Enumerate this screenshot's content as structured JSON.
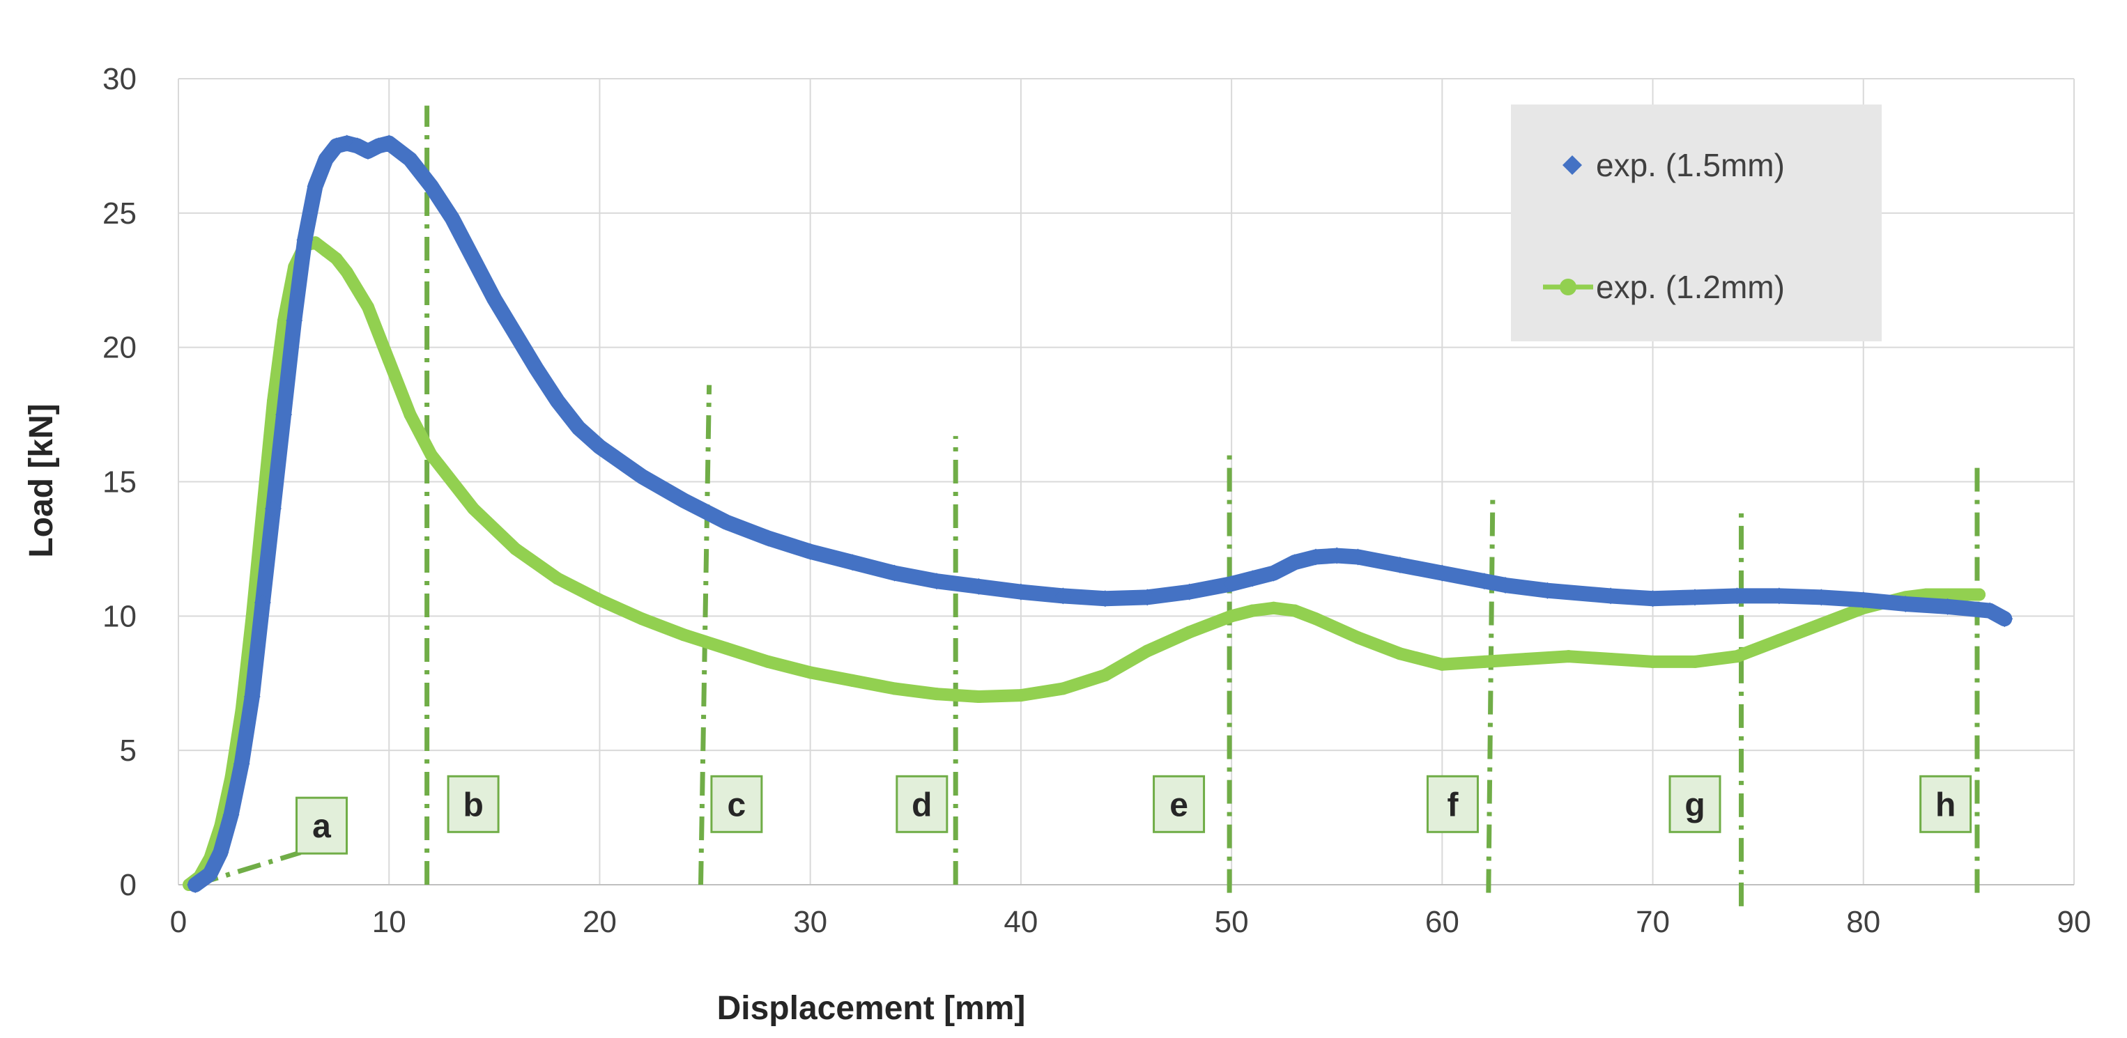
{
  "chart_data": {
    "type": "scatter",
    "title": "",
    "xlabel": "Displacement [mm]",
    "ylabel": "Load [kN]",
    "xlim": [
      0,
      90
    ],
    "ylim": [
      0,
      30
    ],
    "xticks": [
      0,
      10,
      20,
      30,
      40,
      50,
      60,
      70,
      80,
      90
    ],
    "yticks": [
      0,
      5,
      10,
      15,
      20,
      25,
      30
    ],
    "grid": true,
    "legend_position": "top-right",
    "series": [
      {
        "name": "exp. (1.5mm)",
        "color": "#4472C4",
        "marker": "diamond",
        "x": [
          0.8,
          1.5,
          2,
          2.5,
          3,
          3.5,
          4,
          4.5,
          5,
          5.5,
          6,
          6.5,
          7,
          7.5,
          8,
          8.5,
          9,
          9.5,
          10,
          11,
          12,
          13,
          14,
          15,
          16,
          17,
          18,
          19,
          20,
          22,
          24,
          26,
          28,
          30,
          32,
          34,
          36,
          38,
          40,
          42,
          44,
          46,
          48,
          50,
          51,
          52,
          53,
          54,
          55,
          56,
          58,
          60,
          62,
          63,
          65,
          68,
          70,
          72,
          74,
          76,
          78,
          80,
          82,
          84,
          86,
          86.7
        ],
        "y": [
          0,
          0.4,
          1.2,
          2.6,
          4.5,
          7,
          10.5,
          14,
          17.5,
          21,
          24,
          26,
          27,
          27.5,
          27.6,
          27.5,
          27.3,
          27.5,
          27.6,
          27,
          26,
          24.8,
          23.3,
          21.8,
          20.5,
          19.2,
          18,
          17,
          16.3,
          15.2,
          14.3,
          13.5,
          12.9,
          12.4,
          12,
          11.6,
          11.3,
          11.1,
          10.9,
          10.75,
          10.65,
          10.7,
          10.9,
          11.2,
          11.4,
          11.6,
          12,
          12.2,
          12.25,
          12.2,
          11.9,
          11.6,
          11.3,
          11.15,
          10.95,
          10.75,
          10.65,
          10.7,
          10.75,
          10.75,
          10.7,
          10.6,
          10.45,
          10.35,
          10.2,
          9.9
        ]
      },
      {
        "name": "exp. (1.2mm)",
        "color": "#92D050",
        "marker": "circle",
        "x": [
          0.5,
          1,
          1.5,
          2,
          2.5,
          3,
          3.5,
          4,
          4.5,
          5,
          5.5,
          6,
          6.5,
          7,
          7.5,
          8,
          9,
          10,
          11,
          12,
          14,
          16,
          18,
          20,
          22,
          24,
          26,
          28,
          30,
          32,
          34,
          36,
          38,
          40,
          42,
          44,
          46,
          48,
          50,
          51,
          52,
          53,
          54,
          56,
          58,
          60,
          62,
          64,
          66,
          68,
          70,
          72,
          74,
          76,
          78,
          80,
          82,
          83,
          84,
          85.5
        ],
        "y": [
          0,
          0.3,
          1,
          2.2,
          4,
          6.5,
          10,
          14,
          18,
          21,
          23,
          23.8,
          23.9,
          23.6,
          23.3,
          22.8,
          21.5,
          19.5,
          17.5,
          16,
          14,
          12.5,
          11.4,
          10.6,
          9.9,
          9.3,
          8.8,
          8.3,
          7.9,
          7.6,
          7.3,
          7.1,
          7,
          7.05,
          7.3,
          7.8,
          8.7,
          9.4,
          10,
          10.2,
          10.3,
          10.2,
          9.9,
          9.2,
          8.6,
          8.2,
          8.3,
          8.4,
          8.5,
          8.4,
          8.3,
          8.3,
          8.5,
          9.1,
          9.7,
          10.3,
          10.7,
          10.8,
          10.8,
          10.8
        ]
      }
    ],
    "reference_lines": [
      {
        "label": "a",
        "x": [
          0.8,
          5.8
        ],
        "y": [
          0,
          1.2
        ]
      },
      {
        "label": "b",
        "x": [
          11.8,
          11.8
        ],
        "y": [
          0,
          29
        ]
      },
      {
        "label": "c",
        "x": [
          24.8,
          25.2
        ],
        "y": [
          0,
          18.6
        ]
      },
      {
        "label": "d",
        "x": [
          36.9,
          36.9
        ],
        "y": [
          0,
          16.7
        ]
      },
      {
        "label": "e",
        "x": [
          49.9,
          49.9
        ],
        "y": [
          -0.3,
          16
        ]
      },
      {
        "label": "f",
        "x": [
          62.2,
          62.4
        ],
        "y": [
          -0.3,
          14.4
        ]
      },
      {
        "label": "g",
        "x": [
          74.2,
          74.2
        ],
        "y": [
          -0.8,
          14.1
        ]
      },
      {
        "label": "h",
        "x": [
          85.4,
          85.4
        ],
        "y": [
          -0.3,
          15.6
        ]
      }
    ],
    "stage_labels": [
      {
        "text": "a",
        "x": 6.8,
        "y": 2.2
      },
      {
        "text": "b",
        "x": 14,
        "y": 3
      },
      {
        "text": "c",
        "x": 26.5,
        "y": 3
      },
      {
        "text": "d",
        "x": 35.3,
        "y": 3
      },
      {
        "text": "e",
        "x": 47.5,
        "y": 3
      },
      {
        "text": "f",
        "x": 60.5,
        "y": 3
      },
      {
        "text": "g",
        "x": 72,
        "y": 3
      },
      {
        "text": "h",
        "x": 83.9,
        "y": 3
      }
    ],
    "reference_line_color": "#70AD47",
    "legend_bg": "#E7E7E7",
    "stage_label_bg": "#E2EFDA",
    "stage_label_border": "#70AD47"
  }
}
